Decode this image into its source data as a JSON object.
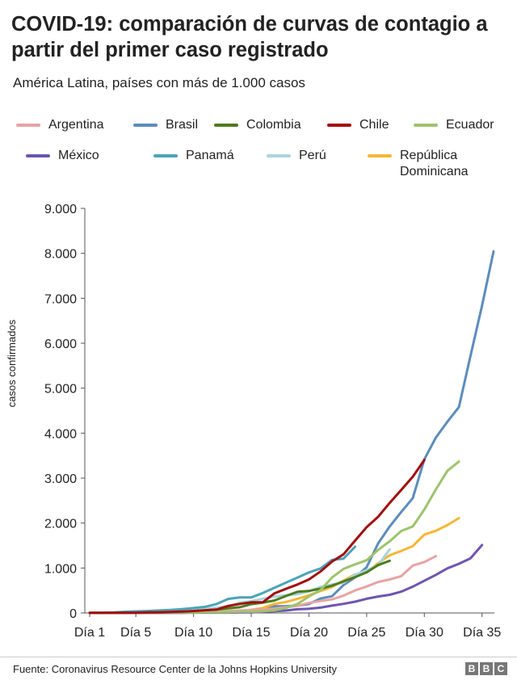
{
  "title": "COVID-19: comparación de curvas de contagio a partir del primer caso registrado",
  "subtitle": "América Latina, países con más de 1.000 casos",
  "source": "Fuente: Coronavirus Resource Center de la Johns Hopkins University",
  "logo": [
    "B",
    "B",
    "C"
  ],
  "chart_data": {
    "type": "line",
    "ylabel": "casos confirmados",
    "xlabel": "",
    "xlim": [
      1,
      36
    ],
    "ylim": [
      0,
      9000
    ],
    "grid": false,
    "legend_position": "top",
    "xticks": [
      1,
      5,
      10,
      15,
      20,
      25,
      30,
      35
    ],
    "xtick_labels": [
      "Día 1",
      "Día 5",
      "Día 10",
      "Día 15",
      "Día 20",
      "Día 25",
      "Día 30",
      "Día 35"
    ],
    "yticks": [
      0,
      1000,
      2000,
      3000,
      4000,
      5000,
      6000,
      7000,
      8000,
      9000
    ],
    "ytick_labels": [
      "0",
      "1.000",
      "2.000",
      "3.000",
      "4.000",
      "5.000",
      "6.000",
      "7.000",
      "8.000",
      "9.000"
    ],
    "series": [
      {
        "name": "Argentina",
        "color": "#e8a3a3",
        "x": [
          1,
          2,
          3,
          4,
          5,
          6,
          7,
          8,
          9,
          10,
          11,
          12,
          13,
          14,
          15,
          16,
          17,
          18,
          19,
          20,
          21,
          22,
          23,
          24,
          25,
          26,
          27,
          28,
          29,
          30,
          31
        ],
        "values": [
          1,
          1,
          2,
          2,
          8,
          12,
          12,
          17,
          19,
          21,
          31,
          34,
          45,
          56,
          65,
          79,
          97,
          128,
          158,
          225,
          266,
          301,
          387,
          502,
          589,
          690,
          745,
          820,
          1054,
          1133,
          1265
        ]
      },
      {
        "name": "Brasil",
        "color": "#5c8cbd",
        "x": [
          1,
          2,
          3,
          4,
          5,
          6,
          7,
          8,
          9,
          10,
          11,
          12,
          13,
          14,
          15,
          16,
          17,
          18,
          19,
          20,
          21,
          22,
          23,
          24,
          25,
          26,
          27,
          28,
          29,
          30,
          31,
          32,
          33,
          34,
          35,
          36
        ],
        "values": [
          1,
          1,
          1,
          2,
          2,
          2,
          2,
          4,
          4,
          13,
          13,
          20,
          25,
          31,
          38,
          52,
          151,
          151,
          162,
          200,
          321,
          372,
          621,
          793,
          1021,
          1546,
          1924,
          2247,
          2554,
          3417,
          3904,
          4256,
          4579,
          5717,
          6836,
          8044
        ]
      },
      {
        "name": "Colombia",
        "color": "#4d7c1f",
        "x": [
          1,
          2,
          3,
          4,
          5,
          6,
          7,
          8,
          9,
          10,
          11,
          12,
          13,
          14,
          15,
          16,
          17,
          18,
          19,
          20,
          21,
          22,
          23,
          24,
          25,
          26,
          27
        ],
        "values": [
          1,
          1,
          1,
          3,
          3,
          9,
          9,
          16,
          24,
          45,
          57,
          75,
          102,
          128,
          196,
          231,
          277,
          378,
          470,
          491,
          539,
          608,
          702,
          798,
          906,
          1065,
          1161
        ]
      },
      {
        "name": "Chile",
        "color": "#a30d0d",
        "x": [
          1,
          2,
          3,
          4,
          5,
          6,
          7,
          8,
          9,
          10,
          11,
          12,
          13,
          14,
          15,
          16,
          17,
          18,
          19,
          20,
          21,
          22,
          23,
          24,
          25,
          26,
          27,
          28,
          29,
          30
        ],
        "values": [
          1,
          1,
          4,
          5,
          7,
          13,
          17,
          23,
          33,
          43,
          61,
          75,
          156,
          201,
          238,
          238,
          434,
          537,
          632,
          746,
          922,
          1142,
          1306,
          1610,
          1909,
          2139,
          2449,
          2738,
          3031,
          3404
        ]
      },
      {
        "name": "Ecuador",
        "color": "#9cc46b",
        "x": [
          1,
          2,
          3,
          4,
          5,
          6,
          7,
          8,
          9,
          10,
          11,
          12,
          13,
          14,
          15,
          16,
          17,
          18,
          19,
          20,
          21,
          22,
          23,
          24,
          25,
          26,
          27,
          28,
          29,
          30,
          31,
          32,
          33
        ],
        "values": [
          1,
          6,
          7,
          10,
          13,
          13,
          13,
          14,
          15,
          15,
          17,
          17,
          17,
          28,
          28,
          37,
          58,
          111,
          199,
          367,
          506,
          789,
          981,
          1082,
          1173,
          1403,
          1595,
          1823,
          1924,
          2302,
          2748,
          3163,
          3368
        ]
      },
      {
        "name": "México",
        "color": "#6e55b0",
        "x": [
          1,
          2,
          3,
          4,
          5,
          6,
          7,
          8,
          9,
          10,
          11,
          12,
          13,
          14,
          15,
          16,
          17,
          18,
          19,
          20,
          21,
          22,
          23,
          24,
          25,
          26,
          27,
          28,
          29,
          30,
          31,
          32,
          33,
          34,
          35
        ],
        "values": [
          1,
          4,
          5,
          5,
          5,
          5,
          5,
          6,
          6,
          7,
          7,
          7,
          8,
          12,
          12,
          26,
          41,
          53,
          82,
          93,
          118,
          164,
          203,
          251,
          316,
          367,
          405,
          475,
          585,
          717,
          848,
          993,
          1094,
          1215,
          1510
        ]
      },
      {
        "name": "Panamá",
        "color": "#4aa4b8",
        "x": [
          1,
          2,
          3,
          4,
          5,
          6,
          7,
          8,
          9,
          10,
          11,
          12,
          13,
          14,
          15,
          16,
          17,
          18,
          19,
          20,
          21,
          22,
          23,
          24
        ],
        "values": [
          1,
          8,
          11,
          27,
          36,
          43,
          55,
          69,
          86,
          109,
          137,
          200,
          313,
          345,
          345,
          443,
          558,
          674,
          786,
          901,
          989,
          1181,
          1209,
          1475
        ]
      },
      {
        "name": "Perú",
        "color": "#a9d4e0",
        "x": [
          1,
          2,
          3,
          4,
          5,
          6,
          7,
          8,
          9,
          10,
          11,
          12,
          13,
          14,
          15,
          16,
          17,
          18,
          19,
          20,
          21,
          22,
          23,
          24,
          25,
          26,
          27
        ],
        "values": [
          1,
          6,
          7,
          9,
          11,
          17,
          22,
          38,
          43,
          71,
          86,
          117,
          145,
          234,
          263,
          318,
          363,
          395,
          416,
          480,
          580,
          635,
          671,
          852,
          950,
          1065,
          1414
        ]
      },
      {
        "name": "República Dominicana",
        "color": "#f5b635",
        "x": [
          1,
          2,
          3,
          4,
          5,
          6,
          7,
          8,
          9,
          10,
          11,
          12,
          13,
          14,
          15,
          16,
          17,
          18,
          19,
          20,
          21,
          22,
          23,
          24,
          25,
          26,
          27,
          28,
          29,
          30,
          31,
          32,
          33
        ],
        "values": [
          1,
          1,
          2,
          2,
          5,
          5,
          5,
          5,
          11,
          11,
          11,
          21,
          21,
          34,
          72,
          112,
          202,
          245,
          312,
          392,
          488,
          581,
          719,
          859,
          901,
          1109,
          1284,
          1380,
          1488,
          1745,
          1828,
          1956,
          2111
        ]
      }
    ]
  }
}
